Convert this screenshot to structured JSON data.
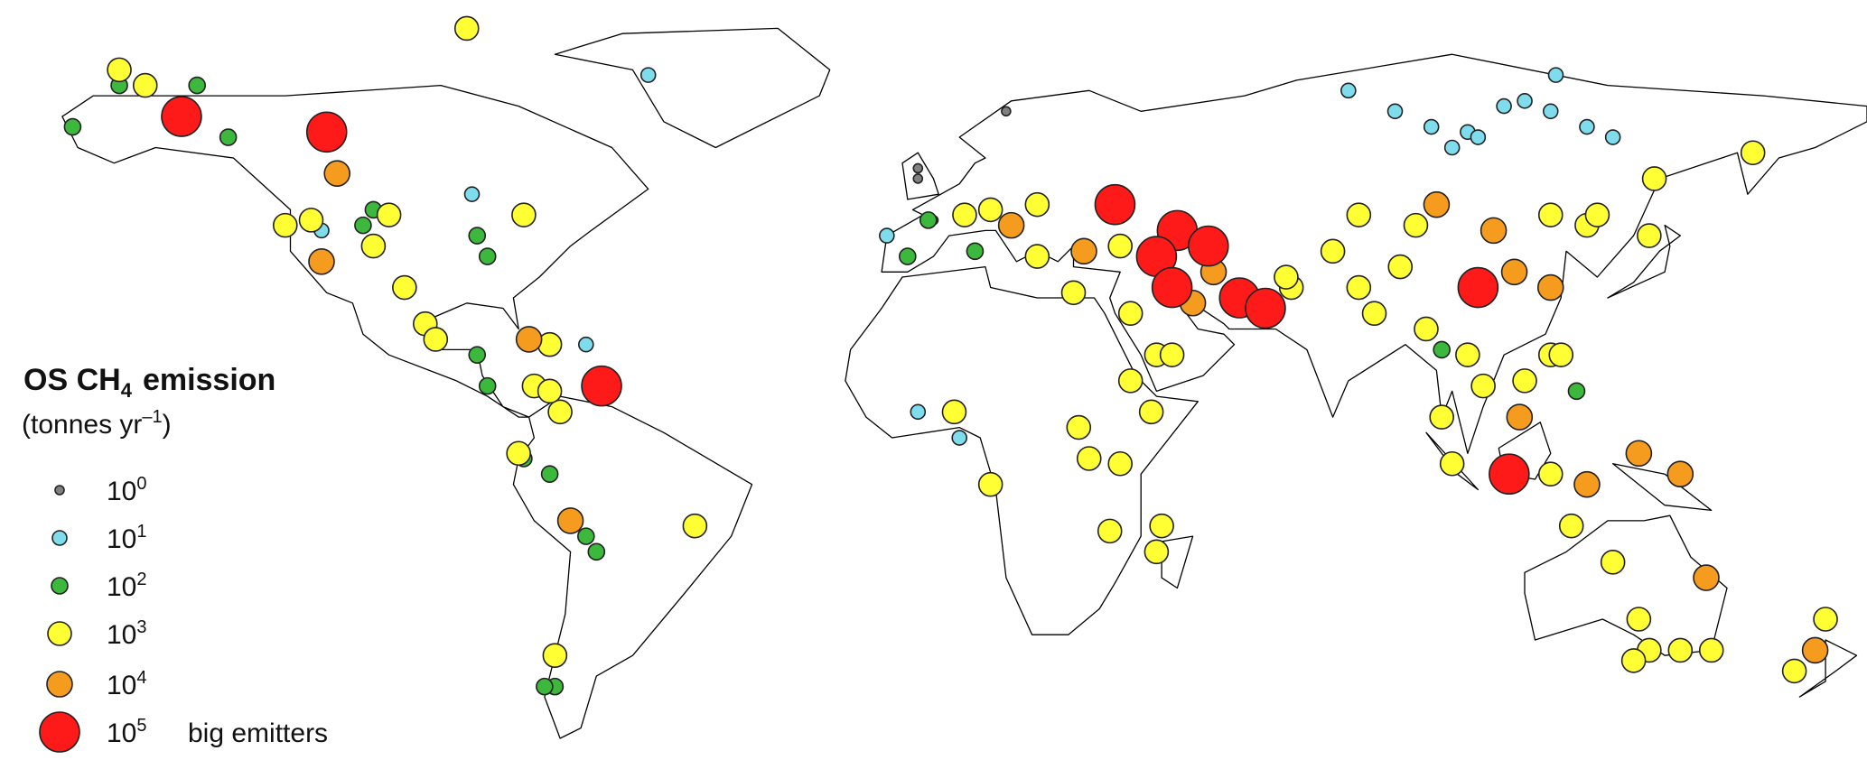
{
  "legend": {
    "title_main": "OS CH",
    "title_sub": "4",
    "title_rest": "emission",
    "unit_main": "(tonnes yr",
    "unit_sup": "–1",
    "unit_close": ")",
    "base": "10",
    "entries": [
      {
        "exponent": 0,
        "color": "#808080"
      },
      {
        "exponent": 1,
        "color": "#7fdcec"
      },
      {
        "exponent": 2,
        "color": "#3cb83c"
      },
      {
        "exponent": 3,
        "color": "#ffff33"
      },
      {
        "exponent": 4,
        "color": "#f59b1e"
      },
      {
        "exponent": 5,
        "color": "#ff1a1a",
        "note": "big emitters"
      }
    ]
  },
  "points": [
    {
      "lon": 14,
      "lat": 67,
      "magnitude": 0
    },
    {
      "lon": -3,
      "lat": 56,
      "magnitude": 0
    },
    {
      "lon": 0,
      "lat": 46,
      "magnitude": 0
    },
    {
      "lon": -3,
      "lat": 54,
      "magnitude": 0
    },
    {
      "lon": -55,
      "lat": 74,
      "magnitude": 1
    },
    {
      "lon": -89,
      "lat": 51,
      "magnitude": 1
    },
    {
      "lon": -9,
      "lat": 43,
      "magnitude": 1
    },
    {
      "lon": -3,
      "lat": 9,
      "magnitude": 1
    },
    {
      "lon": 5,
      "lat": 4,
      "magnitude": 1
    },
    {
      "lon": 80,
      "lat": 71,
      "magnitude": 1
    },
    {
      "lon": 89,
      "lat": 67,
      "magnitude": 1
    },
    {
      "lon": 96,
      "lat": 64,
      "magnitude": 1
    },
    {
      "lon": 103,
      "lat": 63,
      "magnitude": 1
    },
    {
      "lon": 110,
      "lat": 68,
      "magnitude": 1
    },
    {
      "lon": 114,
      "lat": 69,
      "magnitude": 1
    },
    {
      "lon": 119,
      "lat": 67,
      "magnitude": 1
    },
    {
      "lon": 120,
      "lat": 74,
      "magnitude": 1
    },
    {
      "lon": 126,
      "lat": 64,
      "magnitude": 1
    },
    {
      "lon": 131,
      "lat": 62,
      "magnitude": 1
    },
    {
      "lon": 100,
      "lat": 60,
      "magnitude": 1
    },
    {
      "lon": 105,
      "lat": 62,
      "magnitude": 1
    },
    {
      "lon": -118,
      "lat": 44,
      "magnitude": 1
    },
    {
      "lon": -67,
      "lat": 22,
      "magnitude": 1
    },
    {
      "lon": -157,
      "lat": 72,
      "magnitude": 2
    },
    {
      "lon": -142,
      "lat": 72,
      "magnitude": 2
    },
    {
      "lon": -166,
      "lat": 64,
      "magnitude": 2
    },
    {
      "lon": -136,
      "lat": 62,
      "magnitude": 2
    },
    {
      "lon": -108,
      "lat": 48,
      "magnitude": 2
    },
    {
      "lon": -110,
      "lat": 45,
      "magnitude": 2
    },
    {
      "lon": -88,
      "lat": 43,
      "magnitude": 2
    },
    {
      "lon": -86,
      "lat": 39,
      "magnitude": 2
    },
    {
      "lon": -88,
      "lat": 20,
      "magnitude": 2
    },
    {
      "lon": -86,
      "lat": 14,
      "magnitude": 2
    },
    {
      "lon": -79,
      "lat": 0,
      "magnitude": 2
    },
    {
      "lon": -74,
      "lat": -3,
      "magnitude": 2
    },
    {
      "lon": -67,
      "lat": -15,
      "magnitude": 2
    },
    {
      "lon": -65,
      "lat": -18,
      "magnitude": 2
    },
    {
      "lon": -73,
      "lat": -44,
      "magnitude": 2
    },
    {
      "lon": -75,
      "lat": -44,
      "magnitude": 2
    },
    {
      "lon": -5,
      "lat": 39,
      "magnitude": 2
    },
    {
      "lon": 8,
      "lat": 40,
      "magnitude": 2
    },
    {
      "lon": 98,
      "lat": 21,
      "magnitude": 2
    },
    {
      "lon": 124,
      "lat": 13,
      "magnitude": 2
    },
    {
      "lon": -1,
      "lat": 46,
      "magnitude": 2
    },
    {
      "lon": -157,
      "lat": 75,
      "magnitude": 3
    },
    {
      "lon": -152,
      "lat": 72,
      "magnitude": 3
    },
    {
      "lon": -90,
      "lat": 83,
      "magnitude": 3
    },
    {
      "lon": -125,
      "lat": 45,
      "magnitude": 3
    },
    {
      "lon": -120,
      "lat": 46,
      "magnitude": 3
    },
    {
      "lon": -105,
      "lat": 47,
      "magnitude": 3
    },
    {
      "lon": -108,
      "lat": 41,
      "magnitude": 3
    },
    {
      "lon": -79,
      "lat": 47,
      "magnitude": 3
    },
    {
      "lon": -102,
      "lat": 33,
      "magnitude": 3
    },
    {
      "lon": -98,
      "lat": 26,
      "magnitude": 3
    },
    {
      "lon": -96,
      "lat": 23,
      "magnitude": 3
    },
    {
      "lon": -74,
      "lat": 22,
      "magnitude": 3
    },
    {
      "lon": -77,
      "lat": 14,
      "magnitude": 3
    },
    {
      "lon": -72,
      "lat": 9,
      "magnitude": 3
    },
    {
      "lon": -80,
      "lat": 1,
      "magnitude": 3
    },
    {
      "lon": -46,
      "lat": -13,
      "magnitude": 3
    },
    {
      "lon": -73,
      "lat": -38,
      "magnitude": 3
    },
    {
      "lon": 158,
      "lat": 59,
      "magnitude": 3
    },
    {
      "lon": 139,
      "lat": 54,
      "magnitude": 3
    },
    {
      "lon": 138,
      "lat": 43,
      "magnitude": 3
    },
    {
      "lon": 126,
      "lat": 45,
      "magnitude": 3
    },
    {
      "lon": 82,
      "lat": 47,
      "magnitude": 3
    },
    {
      "lon": 77,
      "lat": 40,
      "magnitude": 3
    },
    {
      "lon": 82,
      "lat": 33,
      "magnitude": 3
    },
    {
      "lon": 90,
      "lat": 37,
      "magnitude": 3
    },
    {
      "lon": 93,
      "lat": 45,
      "magnitude": 3
    },
    {
      "lon": 103,
      "lat": 20,
      "magnitude": 3
    },
    {
      "lon": 95,
      "lat": 25,
      "magnitude": 3
    },
    {
      "lon": 98,
      "lat": 8,
      "magnitude": 3
    },
    {
      "lon": 119,
      "lat": 20,
      "magnitude": 3
    },
    {
      "lon": 100,
      "lat": -1,
      "magnitude": 3
    },
    {
      "lon": 123,
      "lat": -13,
      "magnitude": 3
    },
    {
      "lon": 131,
      "lat": -20,
      "magnitude": 3
    },
    {
      "lon": 136,
      "lat": -31,
      "magnitude": 3
    },
    {
      "lon": 150,
      "lat": -37,
      "magnitude": 3
    },
    {
      "lon": 166,
      "lat": -41,
      "magnitude": 3
    },
    {
      "lon": 172,
      "lat": -31,
      "magnitude": 3
    },
    {
      "lon": 144,
      "lat": -37,
      "magnitude": 3
    },
    {
      "lon": 138,
      "lat": -37,
      "magnitude": 3
    },
    {
      "lon": 135,
      "lat": -39,
      "magnitude": 3
    },
    {
      "lon": 11,
      "lat": 48,
      "magnitude": 3
    },
    {
      "lon": 20,
      "lat": 39,
      "magnitude": 3
    },
    {
      "lon": 36,
      "lat": 41,
      "magnitude": 3
    },
    {
      "lon": 27,
      "lat": 32,
      "magnitude": 3
    },
    {
      "lon": 38,
      "lat": 28,
      "magnitude": 3
    },
    {
      "lon": 43,
      "lat": 20,
      "magnitude": 3
    },
    {
      "lon": 46,
      "lat": 20,
      "magnitude": 3
    },
    {
      "lon": 38,
      "lat": 15,
      "magnitude": 3
    },
    {
      "lon": 42,
      "lat": 9,
      "magnitude": 3
    },
    {
      "lon": 36,
      "lat": -1,
      "magnitude": 3
    },
    {
      "lon": 28,
      "lat": 6,
      "magnitude": 3
    },
    {
      "lon": 30,
      "lat": 0,
      "magnitude": 3
    },
    {
      "lon": 11,
      "lat": -5,
      "magnitude": 3
    },
    {
      "lon": 34,
      "lat": -14,
      "magnitude": 3
    },
    {
      "lon": 43,
      "lat": -18,
      "magnitude": 3
    },
    {
      "lon": 44,
      "lat": -13,
      "magnitude": 3
    },
    {
      "lon": 4,
      "lat": 9,
      "magnitude": 3
    },
    {
      "lon": 69,
      "lat": 33,
      "magnitude": 3
    },
    {
      "lon": 68,
      "lat": 35,
      "magnitude": 3
    },
    {
      "lon": 85,
      "lat": 28,
      "magnitude": 3
    },
    {
      "lon": 106,
      "lat": 14,
      "magnitude": 3
    },
    {
      "lon": 114,
      "lat": 15,
      "magnitude": 3
    },
    {
      "lon": 121,
      "lat": 20,
      "magnitude": 3
    },
    {
      "lon": 119,
      "lat": -3,
      "magnitude": 3
    },
    {
      "lon": 6,
      "lat": 47,
      "magnitude": 3
    },
    {
      "lon": 119,
      "lat": 47,
      "magnitude": 3
    },
    {
      "lon": 20,
      "lat": 49,
      "magnitude": 3
    },
    {
      "lon": 128,
      "lat": 47,
      "magnitude": 3
    },
    {
      "lon": -74,
      "lat": 13,
      "magnitude": 3
    },
    {
      "lon": -115,
      "lat": 55,
      "magnitude": 4
    },
    {
      "lon": -118,
      "lat": 38,
      "magnitude": 4
    },
    {
      "lon": -78,
      "lat": 23,
      "magnitude": 4
    },
    {
      "lon": -70,
      "lat": -12,
      "magnitude": 4
    },
    {
      "lon": 15,
      "lat": 45,
      "magnitude": 4
    },
    {
      "lon": 29,
      "lat": 40,
      "magnitude": 4
    },
    {
      "lon": 50,
      "lat": 30,
      "magnitude": 4
    },
    {
      "lon": 97,
      "lat": 49,
      "magnitude": 4
    },
    {
      "lon": 108,
      "lat": 44,
      "magnitude": 4
    },
    {
      "lon": 112,
      "lat": 36,
      "magnitude": 4
    },
    {
      "lon": 119,
      "lat": 33,
      "magnitude": 4
    },
    {
      "lon": 113,
      "lat": 8,
      "magnitude": 4
    },
    {
      "lon": 126,
      "lat": -5,
      "magnitude": 4
    },
    {
      "lon": 136,
      "lat": 1,
      "magnitude": 4
    },
    {
      "lon": 144,
      "lat": -3,
      "magnitude": 4
    },
    {
      "lon": 149,
      "lat": -23,
      "magnitude": 4
    },
    {
      "lon": 170,
      "lat": -37,
      "magnitude": 4
    },
    {
      "lon": 54,
      "lat": 36,
      "magnitude": 4
    },
    {
      "lon": -145,
      "lat": 66,
      "magnitude": 5
    },
    {
      "lon": -117,
      "lat": 63,
      "magnitude": 5
    },
    {
      "lon": -64,
      "lat": 14,
      "magnitude": 5
    },
    {
      "lon": 35,
      "lat": 49,
      "magnitude": 5
    },
    {
      "lon": 47,
      "lat": 44,
      "magnitude": 5
    },
    {
      "lon": 53,
      "lat": 41,
      "magnitude": 5
    },
    {
      "lon": 43,
      "lat": 39,
      "magnitude": 5
    },
    {
      "lon": 46,
      "lat": 33,
      "magnitude": 5
    },
    {
      "lon": 59,
      "lat": 31,
      "magnitude": 5
    },
    {
      "lon": 64,
      "lat": 29,
      "magnitude": 5
    },
    {
      "lon": 105,
      "lat": 33,
      "magnitude": 5
    },
    {
      "lon": 111,
      "lat": -3,
      "magnitude": 5
    }
  ]
}
